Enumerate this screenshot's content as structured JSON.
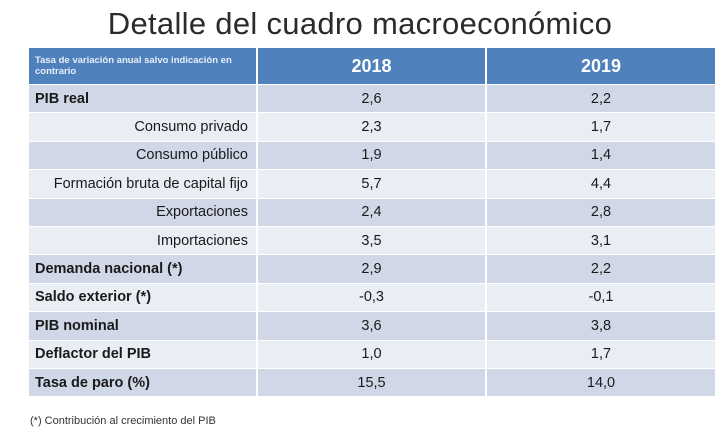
{
  "title": "Detalle del cuadro macroeconómico",
  "table": {
    "header_note": "Tasa de variación anual salvo indicación en contrario",
    "years": [
      "2018",
      "2019"
    ],
    "rows": [
      {
        "label": "PIB real",
        "style": "bold",
        "v2018": "2,6",
        "v2019": "2,2"
      },
      {
        "label": "Consumo privado",
        "style": "indent",
        "v2018": "2,3",
        "v2019": "1,7"
      },
      {
        "label": "Consumo público",
        "style": "indent",
        "v2018": "1,9",
        "v2019": "1,4"
      },
      {
        "label": "Formación bruta de capital fijo",
        "style": "indent-full",
        "v2018": "5,7",
        "v2019": "4,4"
      },
      {
        "label": "Exportaciones",
        "style": "indent",
        "v2018": "2,4",
        "v2019": "2,8"
      },
      {
        "label": "Importaciones",
        "style": "indent",
        "v2018": "3,5",
        "v2019": "3,1"
      },
      {
        "label": "Demanda nacional (*)",
        "style": "bold",
        "v2018": "2,9",
        "v2019": "2,2"
      },
      {
        "label": "Saldo exterior (*)",
        "style": "bold",
        "v2018": "-0,3",
        "v2019": "-0,1"
      },
      {
        "label": "PIB nominal",
        "style": "bold",
        "v2018": "3,6",
        "v2019": "3,8"
      },
      {
        "label": "Deflactor del PIB",
        "style": "bold",
        "v2018": "1,0",
        "v2019": "1,7"
      },
      {
        "label": "Tasa de paro (%)",
        "style": "bold",
        "v2018": "15,5",
        "v2019": "14,0"
      }
    ]
  },
  "footnote": "(*) Contribución al crecimiento del PIB",
  "colors": {
    "header_bg": "#4f81bd",
    "row_dark": "#d0d8e8",
    "row_light": "#e9edf4"
  }
}
